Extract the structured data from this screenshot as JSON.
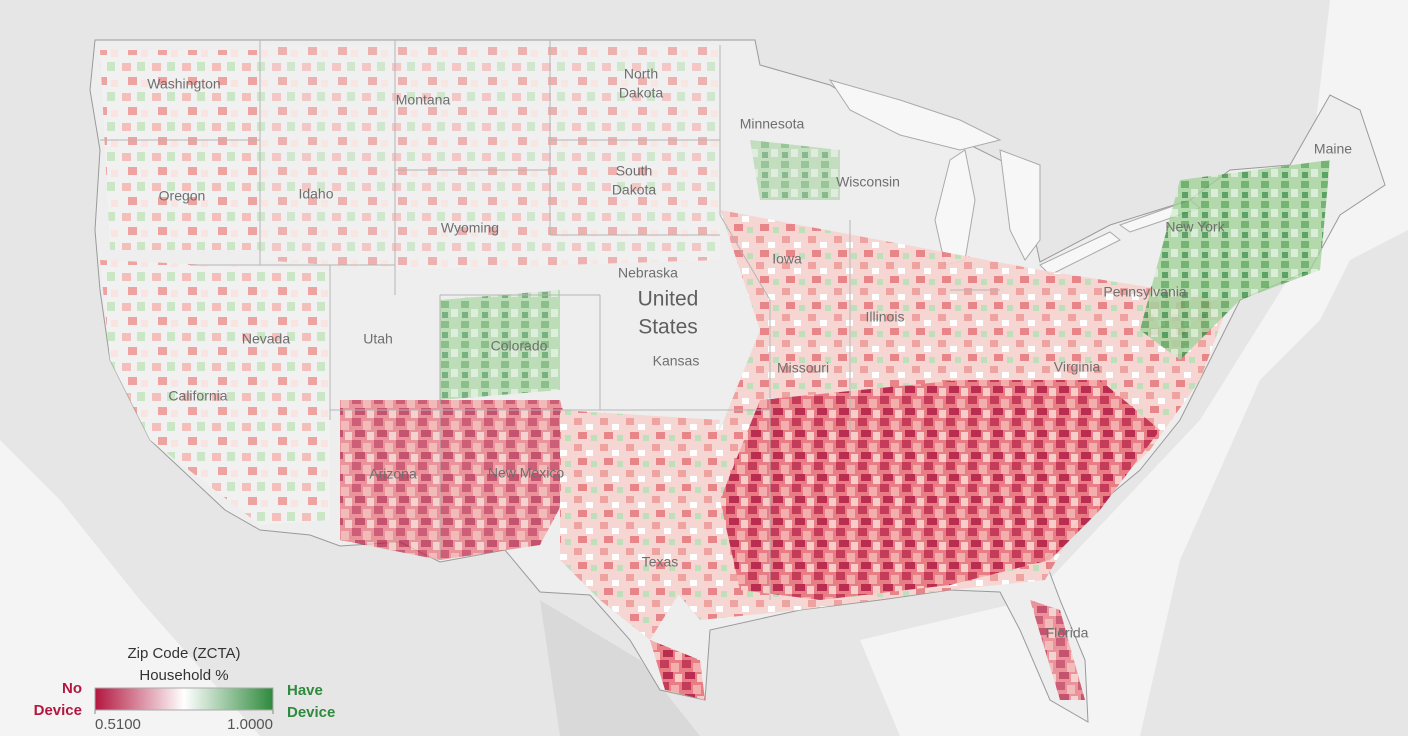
{
  "map": {
    "country_label": [
      "United",
      "States"
    ],
    "state_labels": [
      "Washington",
      "Montana",
      "North",
      "Dakota",
      "Minnesota",
      "Oregon",
      "Idaho",
      "South",
      "Dakota",
      "Wyoming",
      "Nebraska",
      "Iowa",
      "Nevada",
      "Utah",
      "Colorado",
      "Kansas",
      "Illinois",
      "Missouri",
      "California",
      "Arizona",
      "New Mexico",
      "Texas",
      "Virginia",
      "Pennsylvania",
      "New York",
      "Maine",
      "Wisconsin",
      "Florida"
    ]
  },
  "legend": {
    "title": [
      "Zip Code (ZCTA)",
      "Household %"
    ],
    "low_label": [
      "No",
      "Device"
    ],
    "high_label": [
      "Have",
      "Device"
    ],
    "low_color": "#b3173f",
    "high_color": "#2e8a3c",
    "scale": {
      "min": {
        "value": 0.51,
        "label": "0.5100"
      },
      "max": {
        "value": 1.0,
        "label": "1.0000"
      }
    }
  }
}
